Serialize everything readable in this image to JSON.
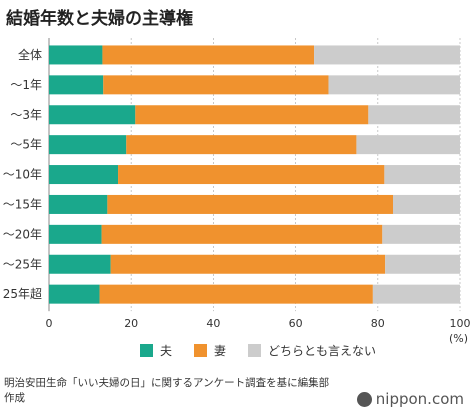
{
  "title": "結婚年数と夫婦の主導権",
  "source": "明治安田生命「いい夫婦の日」に関するアンケート調査を基に編集部作成",
  "logo": "nippon.com",
  "chart_data": {
    "type": "bar",
    "orientation": "horizontal",
    "stacked": true,
    "title": "結婚年数と夫婦の主導権",
    "unit_label": "(%)",
    "xlim": [
      0,
      100
    ],
    "xticks": [
      "0",
      "20",
      "40",
      "60",
      "80",
      "100"
    ],
    "xtick_values": [
      0,
      20,
      40,
      60,
      80,
      100
    ],
    "grid": true,
    "legend_position": "bottom",
    "categories": [
      "全体",
      "〜1年",
      "〜3年",
      "〜5年",
      "〜10年",
      "〜15年",
      "〜20年",
      "〜25年",
      "25年超"
    ],
    "series": [
      {
        "name": "夫",
        "color": "#1aa88c",
        "values": [
          13.0,
          13.2,
          21.0,
          18.8,
          16.8,
          14.2,
          12.8,
          15.0,
          12.3
        ]
      },
      {
        "name": "妻",
        "color": "#f0922e",
        "values": [
          51.5,
          54.8,
          56.7,
          56.0,
          64.8,
          69.5,
          68.3,
          66.8,
          66.5
        ]
      },
      {
        "name": "どちらとも言えない",
        "color": "#cccccc",
        "values": [
          35.5,
          32.0,
          22.3,
          25.2,
          18.4,
          16.3,
          18.9,
          18.2,
          21.2
        ]
      }
    ]
  }
}
